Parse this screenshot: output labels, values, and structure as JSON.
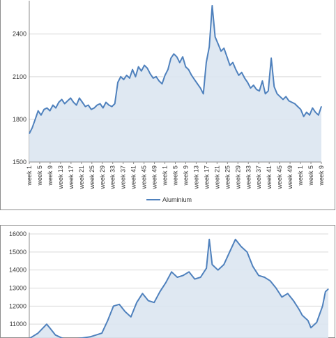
{
  "chart_data": [
    {
      "type": "area",
      "title": "",
      "xlabel": "",
      "ylabel": "",
      "ylim": [
        1500,
        2600
      ],
      "yticks": [
        1500,
        1800,
        2100,
        2400
      ],
      "grid": true,
      "legend_position": "bottom",
      "x_tick_labels": [
        "week 1",
        "week 5",
        "week 9",
        "week 13",
        "week 17",
        "week 21",
        "week 25",
        "week 29",
        "week 33",
        "week 37",
        "week 41",
        "week 45",
        "week 49",
        "week 1",
        "week 5",
        "week 9",
        "week 13",
        "week 17",
        "week 21",
        "week 25",
        "week 29",
        "week 33",
        "week 37",
        "week 41",
        "week 45",
        "week 49",
        "week 1",
        "week 5",
        "week 9"
      ],
      "series": [
        {
          "name": "Aluminium",
          "color": "#4f81bd",
          "fill": "#dbe5f1",
          "points": [
            [
              1,
              1700
            ],
            [
              2,
              1740
            ],
            [
              3,
              1800
            ],
            [
              4,
              1860
            ],
            [
              5,
              1830
            ],
            [
              6,
              1870
            ],
            [
              7,
              1880
            ],
            [
              8,
              1860
            ],
            [
              9,
              1900
            ],
            [
              10,
              1880
            ],
            [
              11,
              1920
            ],
            [
              12,
              1940
            ],
            [
              13,
              1910
            ],
            [
              14,
              1930
            ],
            [
              15,
              1950
            ],
            [
              16,
              1920
            ],
            [
              17,
              1900
            ],
            [
              18,
              1950
            ],
            [
              19,
              1920
            ],
            [
              20,
              1890
            ],
            [
              21,
              1900
            ],
            [
              22,
              1870
            ],
            [
              23,
              1880
            ],
            [
              24,
              1900
            ],
            [
              25,
              1910
            ],
            [
              26,
              1880
            ],
            [
              27,
              1920
            ],
            [
              28,
              1900
            ],
            [
              29,
              1890
            ],
            [
              30,
              1910
            ],
            [
              31,
              2060
            ],
            [
              32,
              2100
            ],
            [
              33,
              2080
            ],
            [
              34,
              2110
            ],
            [
              35,
              2090
            ],
            [
              36,
              2150
            ],
            [
              37,
              2100
            ],
            [
              38,
              2170
            ],
            [
              39,
              2140
            ],
            [
              40,
              2180
            ],
            [
              41,
              2160
            ],
            [
              42,
              2120
            ],
            [
              43,
              2090
            ],
            [
              44,
              2100
            ],
            [
              45,
              2070
            ],
            [
              46,
              2050
            ],
            [
              47,
              2110
            ],
            [
              48,
              2150
            ],
            [
              49,
              2230
            ],
            [
              50,
              2260
            ],
            [
              51,
              2240
            ],
            [
              52,
              2200
            ],
            [
              53,
              2240
            ],
            [
              54,
              2170
            ],
            [
              55,
              2150
            ],
            [
              56,
              2110
            ],
            [
              57,
              2080
            ],
            [
              58,
              2050
            ],
            [
              59,
              2020
            ],
            [
              60,
              1980
            ],
            [
              61,
              2200
            ],
            [
              62,
              2310
            ],
            [
              63,
              2600
            ],
            [
              64,
              2380
            ],
            [
              65,
              2330
            ],
            [
              66,
              2280
            ],
            [
              67,
              2300
            ],
            [
              68,
              2240
            ],
            [
              69,
              2180
            ],
            [
              70,
              2200
            ],
            [
              71,
              2150
            ],
            [
              72,
              2110
            ],
            [
              73,
              2130
            ],
            [
              74,
              2090
            ],
            [
              75,
              2060
            ],
            [
              76,
              2020
            ],
            [
              77,
              2040
            ],
            [
              78,
              2010
            ],
            [
              79,
              2000
            ],
            [
              80,
              2070
            ],
            [
              81,
              1980
            ],
            [
              82,
              2000
            ],
            [
              83,
              2230
            ],
            [
              84,
              2030
            ],
            [
              85,
              1980
            ],
            [
              86,
              1960
            ],
            [
              87,
              1940
            ],
            [
              88,
              1960
            ],
            [
              89,
              1930
            ],
            [
              90,
              1920
            ],
            [
              91,
              1910
            ],
            [
              92,
              1890
            ],
            [
              93,
              1870
            ],
            [
              94,
              1820
            ],
            [
              95,
              1850
            ],
            [
              96,
              1830
            ],
            [
              97,
              1880
            ],
            [
              98,
              1850
            ],
            [
              99,
              1830
            ],
            [
              100,
              1890
            ]
          ]
        }
      ]
    },
    {
      "type": "area",
      "title": "",
      "xlabel": "",
      "ylabel": "",
      "ylim": [
        10000,
        16000
      ],
      "yticks": [
        11000,
        12000,
        13000,
        14000,
        15000,
        16000
      ],
      "grid": true,
      "series": [
        {
          "name": "",
          "color": "#4f81bd",
          "fill": "#dbe5f1",
          "points": [
            [
              1,
              10200
            ],
            [
              4,
              10500
            ],
            [
              7,
              11000
            ],
            [
              8,
              10800
            ],
            [
              10,
              10400
            ],
            [
              14,
              10100
            ],
            [
              18,
              10200
            ],
            [
              22,
              10300
            ],
            [
              26,
              10500
            ],
            [
              28,
              11200
            ],
            [
              30,
              12000
            ],
            [
              32,
              12100
            ],
            [
              34,
              11700
            ],
            [
              36,
              11400
            ],
            [
              38,
              12200
            ],
            [
              40,
              12700
            ],
            [
              42,
              12300
            ],
            [
              44,
              12200
            ],
            [
              46,
              12800
            ],
            [
              48,
              13300
            ],
            [
              50,
              13900
            ],
            [
              52,
              13600
            ],
            [
              54,
              13700
            ],
            [
              56,
              13900
            ],
            [
              58,
              13500
            ],
            [
              60,
              13600
            ],
            [
              62,
              14100
            ],
            [
              63,
              15700
            ],
            [
              64,
              14300
            ],
            [
              66,
              14000
            ],
            [
              68,
              14300
            ],
            [
              70,
              15000
            ],
            [
              72,
              15700
            ],
            [
              74,
              15300
            ],
            [
              76,
              15000
            ],
            [
              78,
              14200
            ],
            [
              80,
              13700
            ],
            [
              82,
              13600
            ],
            [
              84,
              13400
            ],
            [
              86,
              13000
            ],
            [
              88,
              12500
            ],
            [
              90,
              12700
            ],
            [
              92,
              12300
            ],
            [
              94,
              11800
            ],
            [
              95,
              11500
            ],
            [
              97,
              11200
            ],
            [
              98,
              10800
            ],
            [
              100,
              11100
            ],
            [
              102,
              12000
            ],
            [
              103,
              12800
            ],
            [
              104,
              12950
            ]
          ]
        }
      ]
    }
  ]
}
